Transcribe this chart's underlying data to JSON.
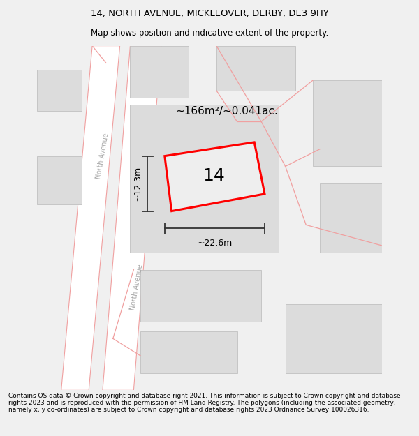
{
  "title": "14, NORTH AVENUE, MICKLEOVER, DERBY, DE3 9HY",
  "subtitle": "Map shows position and indicative extent of the property.",
  "footer": "Contains OS data © Crown copyright and database right 2021. This information is subject to Crown copyright and database rights 2023 and is reproduced with the permission of HM Land Registry. The polygons (including the associated geometry, namely x, y co-ordinates) are subject to Crown copyright and database rights 2023 Ordnance Survey 100026316.",
  "area_label": "~166m²/~0.041ac.",
  "width_label": "~22.6m",
  "height_label": "~12.3m",
  "number_label": "14",
  "bg_color": "#f0f0f0",
  "map_bg": "#e8e8e8",
  "building_fill": "#dcdcdc",
  "building_edge": "#c0c0c0",
  "road_fill": "#ffffff",
  "property_fill": "#e8e8e8",
  "property_edge": "#ff0000",
  "road_pink": "#f0a0a0",
  "title_fontsize": 9.5,
  "subtitle_fontsize": 8.5,
  "footer_fontsize": 6.5,
  "area_fontsize": 11,
  "number_fontsize": 18,
  "dim_fontsize": 9,
  "road_label_fontsize": 7,
  "road_label_color": "#aaaaaa"
}
